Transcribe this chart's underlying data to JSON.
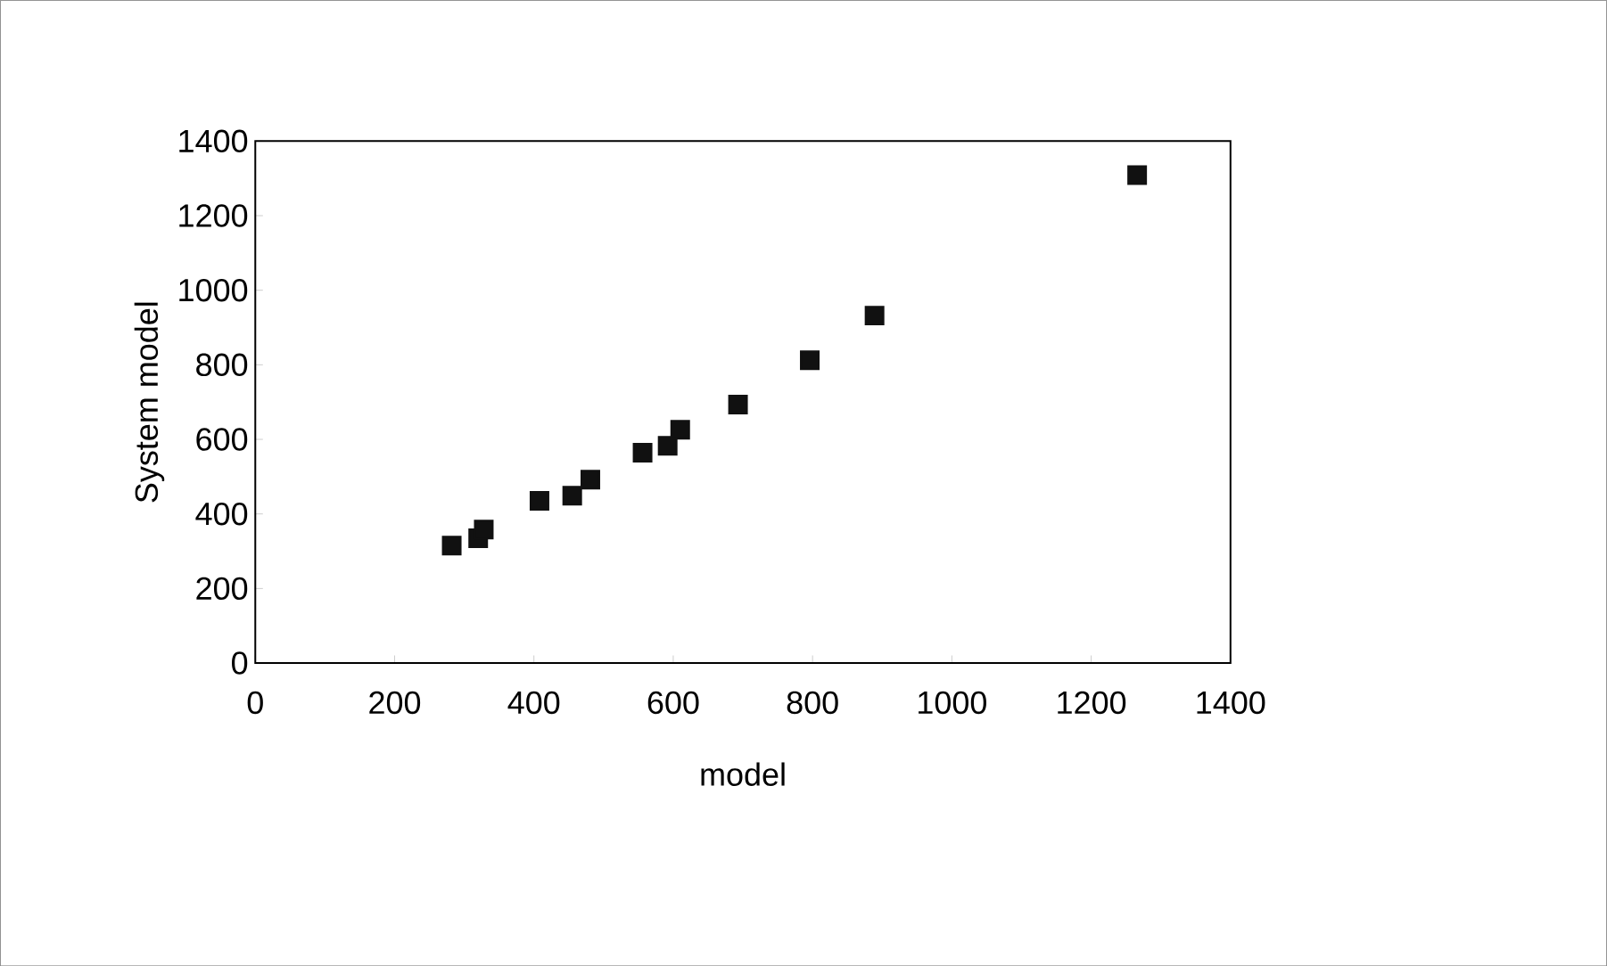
{
  "chart_data": {
    "type": "scatter",
    "xlabel": "model",
    "ylabel": "System model",
    "x": [
      282,
      320,
      328,
      408,
      455,
      481,
      556,
      592,
      610,
      693,
      796,
      889,
      1266
    ],
    "values": [
      315,
      335,
      358,
      435,
      449,
      492,
      564,
      583,
      626,
      693,
      812,
      932,
      1309
    ],
    "color": "#111111",
    "marker": "square",
    "grid": false,
    "xlim": [
      0,
      1400
    ],
    "ylim": [
      0,
      1400
    ],
    "xticks": [
      0,
      200,
      400,
      600,
      800,
      1000,
      1200,
      1400
    ],
    "yticks": [
      0,
      200,
      400,
      600,
      800,
      1000,
      1200,
      1400
    ]
  }
}
